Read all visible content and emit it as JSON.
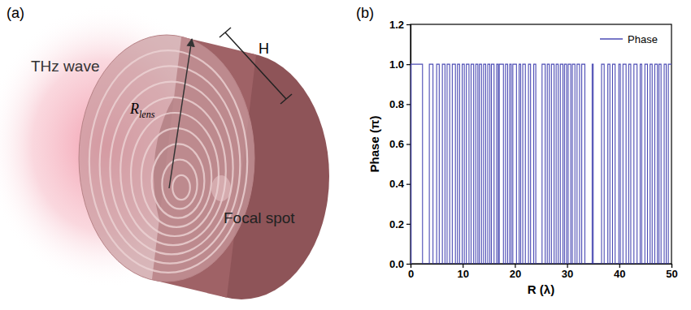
{
  "panels": [
    "(a)",
    "(b)"
  ],
  "diagram": {
    "wave": "THz wave",
    "height": "H",
    "radius": {
      "symbol": "R",
      "subscript": "lens"
    },
    "focus": "Focal spot"
  },
  "chart_data": {
    "type": "line",
    "line_style": "step",
    "xlabel": "R (λ)",
    "ylabel": "Phase (π)",
    "x": [
      0,
      0.1,
      2.3,
      3.6,
      4.3,
      5.0,
      5.5,
      6.1,
      6.6,
      7.0,
      7.5,
      8.0,
      8.6,
      9.0,
      9.4,
      9.9,
      10.3,
      10.7,
      11.2,
      11.6,
      12.1,
      12.5,
      12.9,
      13.2,
      13.6,
      14.0,
      14.4,
      14.8,
      15.2,
      15.5,
      16.0,
      16.5,
      16.8,
      17.0,
      17.8,
      18.2,
      18.6,
      19.0,
      19.3,
      19.6,
      20.3,
      20.8,
      21.1,
      21.5,
      22.0,
      22.6,
      23.0,
      23.6,
      24.0,
      25.2,
      25.8,
      26.2,
      26.6,
      27.0,
      27.5,
      27.9,
      28.3,
      28.7,
      29.2,
      29.5,
      29.9,
      30.2,
      30.7,
      31.0,
      31.5,
      31.9,
      32.4,
      32.8,
      33.4,
      34.8,
      35.0,
      36.6,
      37.1,
      37.8,
      38.2,
      38.7,
      39.2,
      39.9,
      40.2,
      40.7,
      41.3,
      41.8,
      42.2,
      42.8,
      43.4,
      44.0,
      44.3,
      44.9,
      45.4,
      45.9,
      46.3,
      46.8,
      47.3,
      47.6,
      48.0,
      48.6,
      49.0,
      49.4,
      50
    ],
    "series": [
      {
        "name": "Phase",
        "color": "#4b4bb4",
        "values": [
          0,
          1,
          0,
          1,
          0,
          1,
          0,
          1,
          0,
          1,
          0,
          1,
          0,
          1,
          0,
          1,
          0,
          1,
          0,
          1,
          0,
          1,
          0,
          1,
          0,
          1,
          0,
          1,
          0,
          1,
          0,
          1,
          0,
          1,
          0,
          1,
          0,
          1,
          0,
          1,
          0,
          1,
          0,
          1,
          0,
          1,
          0,
          1,
          0,
          1,
          0,
          1,
          0,
          1,
          0,
          1,
          0,
          1,
          0,
          1,
          0,
          1,
          0,
          1,
          0,
          1,
          0,
          1,
          0,
          1,
          0,
          1,
          0,
          1,
          0,
          1,
          0,
          1,
          0,
          1,
          0,
          1,
          0,
          1,
          0,
          1,
          0,
          1,
          0,
          1,
          0,
          1,
          0,
          1,
          0,
          1,
          0,
          1,
          1
        ]
      }
    ],
    "xlim": [
      0,
      50
    ],
    "xticks": [
      0,
      10,
      20,
      30,
      40,
      50
    ],
    "ylim": [
      0,
      1.2
    ],
    "yticks": [
      {
        "value": 0,
        "label": "0.0"
      },
      {
        "value": 0.2,
        "label": "0.2"
      },
      {
        "value": 0.4,
        "label": "0.4"
      },
      {
        "value": 0.6,
        "label": "0.6"
      },
      {
        "value": 0.8,
        "label": "0.8"
      },
      {
        "value": 1,
        "label": "1.0"
      },
      {
        "value": 1.2,
        "label": "1.2"
      }
    ],
    "grid": false,
    "legend": "upper right"
  }
}
